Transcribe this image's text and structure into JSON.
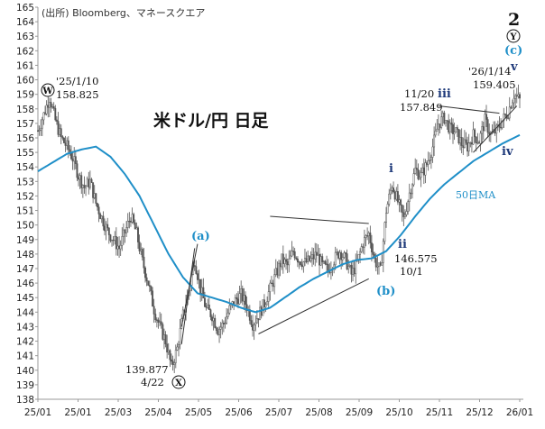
{
  "chart_data": {
    "type": "candlestick",
    "title": "米ドル/円 日足",
    "source": "(出所) Bloomberg、マネースクエア",
    "y_ticks": [
      138,
      139,
      140,
      141,
      142,
      143,
      144,
      145,
      146,
      147,
      148,
      149,
      150,
      151,
      152,
      153,
      154,
      155,
      156,
      157,
      158,
      159,
      160,
      161,
      162,
      163,
      164,
      165
    ],
    "ylim": [
      138,
      165
    ],
    "x_ticks": [
      "25/01",
      "25/01",
      "25/03",
      "25/04",
      "25/05",
      "25/06",
      "25/07",
      "25/08",
      "25/09",
      "25/10",
      "25/11",
      "25/12",
      "26/01"
    ],
    "ma_label": "50日MA",
    "price_path": [
      [
        0,
        156.5
      ],
      [
        4,
        157.6
      ],
      [
        8,
        158.8
      ],
      [
        12,
        157.2
      ],
      [
        16,
        156.0
      ],
      [
        20,
        155.4
      ],
      [
        24,
        154.6
      ],
      [
        28,
        153.4
      ],
      [
        32,
        152.6
      ],
      [
        36,
        153.0
      ],
      [
        40,
        151.5
      ],
      [
        44,
        150.5
      ],
      [
        48,
        149.6
      ],
      [
        52,
        149.0
      ],
      [
        56,
        148.4
      ],
      [
        60,
        149.5
      ],
      [
        64,
        150.6
      ],
      [
        68,
        149.4
      ],
      [
        72,
        147.5
      ],
      [
        76,
        146.0
      ],
      [
        80,
        144.2
      ],
      [
        84,
        143.0
      ],
      [
        88,
        142.0
      ],
      [
        92,
        140.2
      ],
      [
        96,
        141.5
      ],
      [
        100,
        143.8
      ],
      [
        104,
        145.5
      ],
      [
        108,
        147.6
      ],
      [
        112,
        145.6
      ],
      [
        116,
        144.2
      ],
      [
        120,
        143.8
      ],
      [
        124,
        142.8
      ],
      [
        128,
        143.2
      ],
      [
        132,
        144.2
      ],
      [
        136,
        144.8
      ],
      [
        140,
        145.2
      ],
      [
        144,
        144.4
      ],
      [
        148,
        143.2
      ],
      [
        152,
        143.8
      ],
      [
        156,
        144.6
      ],
      [
        160,
        145.6
      ],
      [
        164,
        146.6
      ],
      [
        168,
        147.6
      ],
      [
        172,
        147.2
      ],
      [
        176,
        148.2
      ],
      [
        180,
        147.6
      ],
      [
        184,
        147.4
      ],
      [
        188,
        147.6
      ],
      [
        192,
        148.0
      ],
      [
        196,
        147.2
      ],
      [
        200,
        146.9
      ],
      [
        204,
        147.6
      ],
      [
        208,
        148.2
      ],
      [
        212,
        147.6
      ],
      [
        216,
        146.6
      ],
      [
        220,
        147.4
      ],
      [
        224,
        148.8
      ],
      [
        228,
        149.4
      ],
      [
        232,
        147.6
      ],
      [
        236,
        146.8
      ],
      [
        240,
        151.0
      ],
      [
        244,
        152.8
      ],
      [
        248,
        151.6
      ],
      [
        252,
        150.4
      ],
      [
        256,
        152.2
      ],
      [
        260,
        153.8
      ],
      [
        264,
        153.4
      ],
      [
        268,
        154.2
      ],
      [
        272,
        155.4
      ],
      [
        276,
        157.0
      ],
      [
        280,
        157.4
      ],
      [
        284,
        156.6
      ],
      [
        288,
        156.4
      ],
      [
        292,
        155.6
      ],
      [
        296,
        155.4
      ],
      [
        300,
        156.2
      ],
      [
        304,
        155.8
      ],
      [
        308,
        157.2
      ],
      [
        312,
        156.2
      ],
      [
        316,
        156.5
      ],
      [
        320,
        157.2
      ],
      [
        324,
        157.8
      ],
      [
        328,
        159.0
      ],
      [
        332,
        158.6
      ]
    ],
    "ma_path": [
      [
        0,
        153.7
      ],
      [
        10,
        154.3
      ],
      [
        20,
        154.9
      ],
      [
        30,
        155.2
      ],
      [
        40,
        155.4
      ],
      [
        50,
        154.7
      ],
      [
        60,
        153.5
      ],
      [
        70,
        152.0
      ],
      [
        80,
        150.0
      ],
      [
        90,
        148.0
      ],
      [
        100,
        146.4
      ],
      [
        110,
        145.3
      ],
      [
        120,
        145.0
      ],
      [
        130,
        144.7
      ],
      [
        140,
        144.3
      ],
      [
        150,
        144.0
      ],
      [
        160,
        144.3
      ],
      [
        170,
        145.0
      ],
      [
        180,
        145.7
      ],
      [
        190,
        146.3
      ],
      [
        200,
        146.8
      ],
      [
        210,
        147.3
      ],
      [
        220,
        147.6
      ],
      [
        230,
        147.7
      ],
      [
        240,
        148.2
      ],
      [
        250,
        149.3
      ],
      [
        260,
        150.6
      ],
      [
        270,
        151.8
      ],
      [
        280,
        152.8
      ],
      [
        290,
        153.6
      ],
      [
        300,
        154.4
      ],
      [
        310,
        155.0
      ],
      [
        320,
        155.6
      ],
      [
        332,
        156.2
      ]
    ],
    "trendlines": [
      {
        "from": [
          160,
          150.6
        ],
        "to": [
          228,
          150.1
        ]
      },
      {
        "from": [
          152,
          142.5
        ],
        "to": [
          228,
          146.3
        ]
      },
      {
        "from": [
          99,
          141.8
        ],
        "to": [
          108,
          148.4
        ]
      },
      {
        "from": [
          99,
          143.0
        ],
        "to": [
          110,
          148.7
        ]
      },
      {
        "from": [
          276,
          158.2
        ],
        "to": [
          318,
          157.7
        ]
      },
      {
        "from": [
          300,
          155.0
        ],
        "to": [
          330,
          158.2
        ]
      }
    ],
    "annotations": {
      "w_date": "'25/1/10",
      "w_value": "158.825",
      "w_label": "W",
      "x_value": "139.877",
      "x_date": "4/22",
      "x_label": "X",
      "a_label": "(a)",
      "b_label": "(b)",
      "c_label": "(c)",
      "i_label": "i",
      "ii_label": "ii",
      "ii_value": "146.575",
      "ii_date": "10/1",
      "iii_date": "11/20",
      "iii_label": "iii",
      "iii_value": "157.849",
      "iv_label": "iv",
      "v_date": "'26/1/14",
      "v_value": "159.405",
      "v_label": "v",
      "big2": "2",
      "y_label": "Y"
    },
    "colors": {
      "candle": "#555555",
      "ma": "#1f8fc8",
      "trend": "#333333",
      "wave_blue": "#1f3a7a",
      "wave_light": "#1f8fc8"
    }
  }
}
